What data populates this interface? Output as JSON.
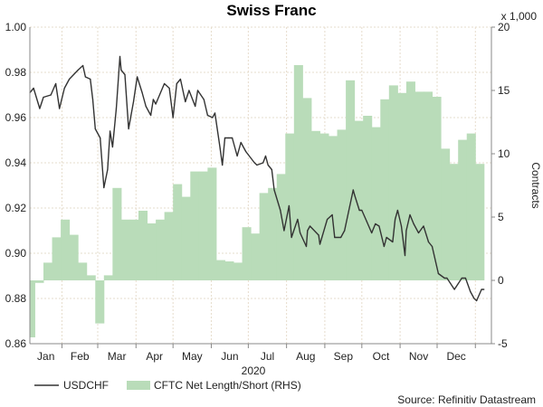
{
  "chart_data": {
    "type": "line+area",
    "title": "Swiss Franc",
    "xlabel": "2020",
    "ylabel_right": "Contracts",
    "right_axis_multiplier": "x 1,000",
    "source": "Source: Refinitiv Datastream",
    "x_tick_labels": [
      "Jan",
      "Feb",
      "Mar",
      "Apr",
      "May",
      "Jun",
      "Jul",
      "Aug",
      "Sep",
      "Oct",
      "Nov",
      "Dec"
    ],
    "xlim": [
      "2020-01-06",
      "2021-01-14"
    ],
    "left_axis": {
      "ylim": [
        0.86,
        1.0
      ],
      "ticks": [
        "0.86",
        "0.88",
        "0.90",
        "0.92",
        "0.94",
        "0.96",
        "0.98",
        "1.00"
      ]
    },
    "right_axis": {
      "ylim": [
        -5,
        20
      ],
      "ticks": [
        "-5",
        "0",
        "5",
        "10",
        "15",
        "20"
      ]
    },
    "grid": true,
    "legend_placement": "bottom-left",
    "colors": {
      "line": "#333333",
      "area": "#b9dcb9"
    },
    "series": [
      {
        "name": "USDCHF",
        "type": "line",
        "axis": "left",
        "x": [
          "2020-01-06",
          "2020-01-09",
          "2020-01-14",
          "2020-01-17",
          "2020-01-23",
          "2020-01-27",
          "2020-01-30",
          "2020-02-03",
          "2020-02-07",
          "2020-02-14",
          "2020-02-18",
          "2020-02-20",
          "2020-02-24",
          "2020-02-26",
          "2020-02-28",
          "2020-03-03",
          "2020-03-06",
          "2020-03-09",
          "2020-03-11",
          "2020-03-13",
          "2020-03-16",
          "2020-03-19",
          "2020-03-20",
          "2020-03-23",
          "2020-03-26",
          "2020-03-30",
          "2020-04-02",
          "2020-04-06",
          "2020-04-09",
          "2020-04-13",
          "2020-04-15",
          "2020-04-17",
          "2020-04-24",
          "2020-04-28",
          "2020-05-01",
          "2020-05-04",
          "2020-05-07",
          "2020-05-11",
          "2020-05-14",
          "2020-05-19",
          "2020-05-21",
          "2020-05-26",
          "2020-05-29",
          "2020-06-02",
          "2020-06-04",
          "2020-06-08",
          "2020-06-10",
          "2020-06-12",
          "2020-06-15",
          "2020-06-18",
          "2020-06-22",
          "2020-06-25",
          "2020-06-29",
          "2020-07-06",
          "2020-07-08",
          "2020-07-13",
          "2020-07-15",
          "2020-07-17",
          "2020-07-20",
          "2020-07-22",
          "2020-07-27",
          "2020-07-30",
          "2020-08-03",
          "2020-08-05",
          "2020-08-10",
          "2020-08-12",
          "2020-08-17",
          "2020-08-18",
          "2020-08-20",
          "2020-08-27",
          "2020-08-28",
          "2020-09-03",
          "2020-09-07",
          "2020-09-09",
          "2020-09-14",
          "2020-09-17",
          "2020-09-24",
          "2020-09-25",
          "2020-09-29",
          "2020-10-01",
          "2020-10-05",
          "2020-10-09",
          "2020-10-12",
          "2020-10-15",
          "2020-10-19",
          "2020-10-21",
          "2020-10-26",
          "2020-10-28",
          "2020-10-30",
          "2020-11-02",
          "2020-11-05",
          "2020-11-06",
          "2020-11-09",
          "2020-11-12",
          "2020-11-16",
          "2020-11-20",
          "2020-11-24",
          "2020-11-27",
          "2020-12-02",
          "2020-12-07",
          "2020-12-09",
          "2020-12-15",
          "2020-12-21",
          "2020-12-24",
          "2020-12-28",
          "2020-12-31",
          "2021-01-02",
          "2021-01-06",
          "2021-01-08"
        ],
        "values": [
          0.971,
          0.973,
          0.964,
          0.969,
          0.97,
          0.975,
          0.964,
          0.973,
          0.977,
          0.981,
          0.983,
          0.978,
          0.977,
          0.968,
          0.955,
          0.951,
          0.929,
          0.937,
          0.954,
          0.947,
          0.964,
          0.987,
          0.981,
          0.979,
          0.955,
          0.967,
          0.978,
          0.971,
          0.965,
          0.961,
          0.968,
          0.966,
          0.975,
          0.973,
          0.96,
          0.975,
          0.977,
          0.967,
          0.972,
          0.965,
          0.972,
          0.968,
          0.961,
          0.96,
          0.962,
          0.947,
          0.939,
          0.951,
          0.951,
          0.951,
          0.943,
          0.949,
          0.945,
          0.94,
          0.939,
          0.94,
          0.943,
          0.939,
          0.937,
          0.928,
          0.919,
          0.91,
          0.921,
          0.907,
          0.915,
          0.909,
          0.903,
          0.91,
          0.912,
          0.908,
          0.904,
          0.915,
          0.917,
          0.907,
          0.907,
          0.91,
          0.928,
          0.926,
          0.919,
          0.919,
          0.914,
          0.909,
          0.913,
          0.912,
          0.903,
          0.907,
          0.905,
          0.915,
          0.919,
          0.912,
          0.899,
          0.91,
          0.917,
          0.913,
          0.909,
          0.912,
          0.905,
          0.903,
          0.891,
          0.889,
          0.889,
          0.884,
          0.889,
          0.889,
          0.883,
          0.88,
          0.879,
          0.884,
          0.884
        ]
      },
      {
        "name": "CFTC Net Length/Short (RHS)",
        "type": "area-step",
        "axis": "right",
        "unit_multiplier": 1000,
        "x": [
          "2020-01-03",
          "2020-01-10",
          "2020-01-17",
          "2020-01-24",
          "2020-01-31",
          "2020-02-07",
          "2020-02-14",
          "2020-02-21",
          "2020-02-28",
          "2020-03-06",
          "2020-03-13",
          "2020-03-20",
          "2020-03-27",
          "2020-04-03",
          "2020-04-10",
          "2020-04-17",
          "2020-04-24",
          "2020-05-01",
          "2020-05-08",
          "2020-05-15",
          "2020-05-22",
          "2020-05-29",
          "2020-06-05",
          "2020-06-12",
          "2020-06-19",
          "2020-06-26",
          "2020-07-03",
          "2020-07-10",
          "2020-07-17",
          "2020-07-24",
          "2020-07-31",
          "2020-08-07",
          "2020-08-14",
          "2020-08-21",
          "2020-08-28",
          "2020-09-04",
          "2020-09-11",
          "2020-09-18",
          "2020-09-25",
          "2020-10-02",
          "2020-10-09",
          "2020-10-16",
          "2020-10-23",
          "2020-10-30",
          "2020-11-06",
          "2020-11-13",
          "2020-11-20",
          "2020-11-27",
          "2020-12-04",
          "2020-12-11",
          "2020-12-18",
          "2020-12-25",
          "2021-01-01"
        ],
        "values": [
          -4.5,
          -0.2,
          1.4,
          3.4,
          4.8,
          3.6,
          1.4,
          0.4,
          -3.4,
          0.4,
          7.3,
          4.8,
          4.8,
          5.5,
          4.5,
          4.8,
          5.4,
          7.6,
          6.6,
          8.6,
          8.6,
          8.9,
          1.6,
          1.5,
          1.4,
          4.2,
          3.7,
          6.9,
          7.3,
          8.4,
          11.6,
          17.0,
          14.4,
          11.8,
          11.6,
          11.4,
          11.9,
          15.8,
          12.6,
          13.0,
          12.1,
          14.3,
          15.4,
          14.8,
          15.7,
          14.9,
          14.9,
          14.5,
          10.4,
          9.2,
          11.1,
          11.6,
          9.2
        ]
      }
    ]
  }
}
